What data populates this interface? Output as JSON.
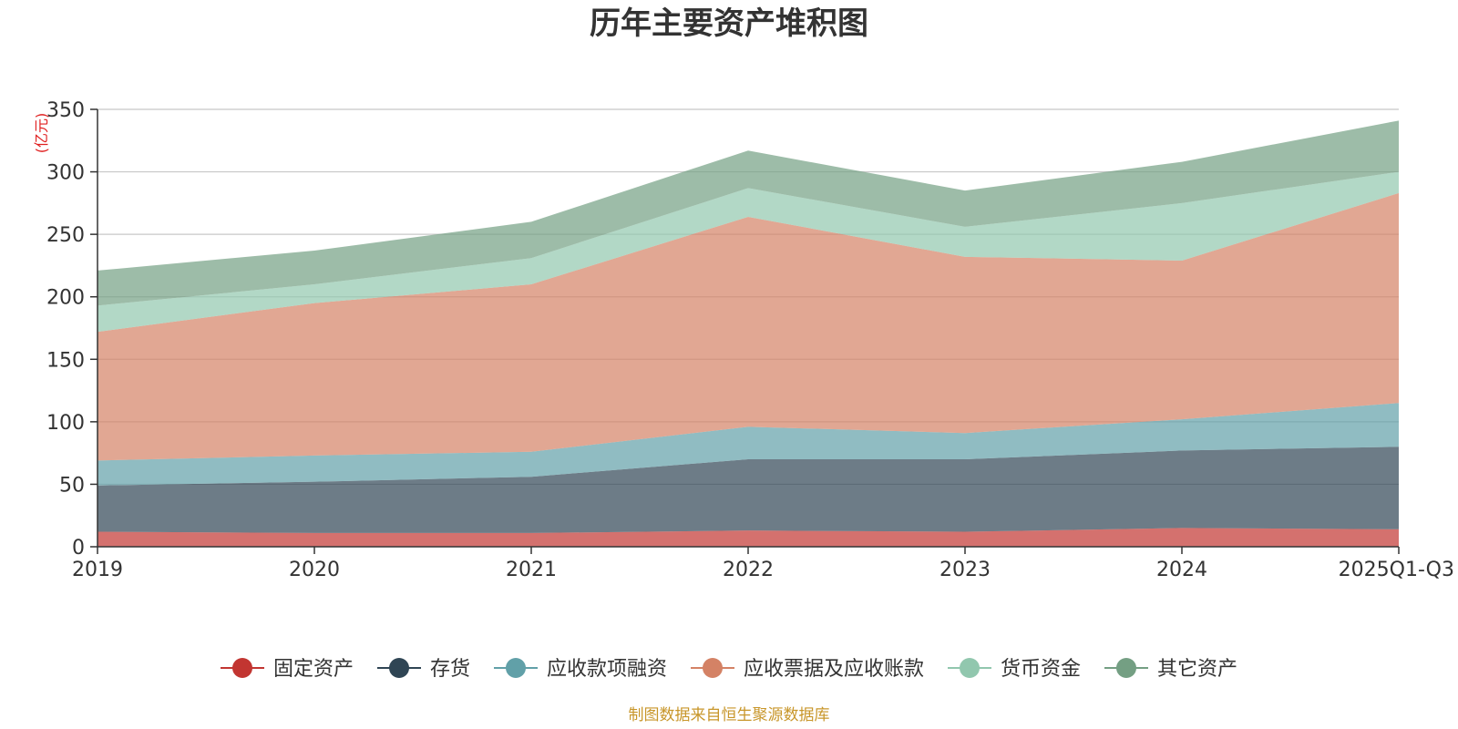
{
  "chart_data": {
    "type": "area",
    "stacked": true,
    "title": "历年主要资产堆积图",
    "unit_label": "(亿元)",
    "categories": [
      "2019",
      "2020",
      "2021",
      "2022",
      "2023",
      "2024",
      "2025Q1-Q3"
    ],
    "y_ticks": [
      "0",
      "50",
      "100",
      "150",
      "200",
      "250",
      "300",
      "350"
    ],
    "ylim": [
      0,
      350
    ],
    "grid": true,
    "legend_position": "bottom-center",
    "series": [
      {
        "name": "固定资产",
        "color": "#c23531",
        "values": [
          12,
          11,
          11,
          13,
          12,
          15,
          14
        ]
      },
      {
        "name": "存货",
        "color": "#2f4554",
        "values": [
          37,
          41,
          45,
          57,
          58,
          62,
          66
        ]
      },
      {
        "name": "应收款项融资",
        "color": "#61a0a8",
        "values": [
          20,
          21,
          20,
          26,
          21,
          25,
          35
        ]
      },
      {
        "name": "应收票据及应收账款",
        "color": "#d48265",
        "values": [
          103,
          122,
          134,
          168,
          141,
          127,
          168
        ]
      },
      {
        "name": "货币资金",
        "color": "#91c7ae",
        "values": [
          21,
          15,
          21,
          23,
          24,
          46,
          17
        ]
      },
      {
        "name": "其它资产",
        "color": "#749f83",
        "values": [
          28,
          27,
          29,
          30,
          29,
          33,
          41
        ]
      }
    ]
  },
  "source_note": "制图数据来自恒生聚源数据库"
}
